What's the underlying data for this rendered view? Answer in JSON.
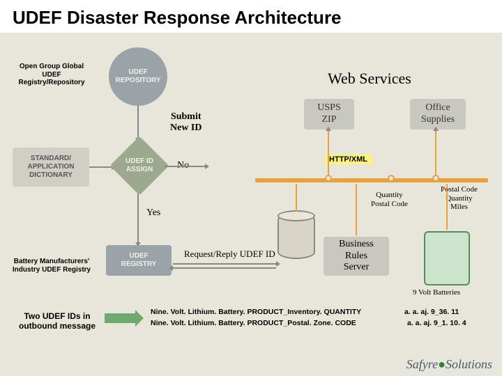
{
  "title": "UDEF Disaster Response Architecture",
  "colors": {
    "bg": "#e8e5da",
    "grey_fill": "#9aa4a8",
    "grey_dark": "#7f8a90",
    "text_light": "#f2efe6",
    "diamond": "#9ca98f",
    "bus": "#e9a23a",
    "green": "#6ea96e",
    "hl": "#fff27a"
  },
  "nodes": {
    "repo_circle": "UDEF\nREPOSITORY",
    "dict_rect": "STANDARD/\nAPPLICATION\nDICTIONARY",
    "assign_diamond": "UDEF ID\nASSIGN",
    "registry_rect": "UDEF\nREGISTRY",
    "rules_rect": "Business\nRules\nServer"
  },
  "labels": {
    "open_group": "Open Group Global\nUDEF\nRegistry/Repository",
    "submit": "Submit\nNew ID",
    "no": "No",
    "yes": "Yes",
    "web_services": "Web Services",
    "usps": "USPS\nZIP",
    "office": "Office\nSupplies",
    "http": "HTTP/XML",
    "qty_postal": "Quantity\nPostal Code",
    "postal_miles": "Postal Code\nQuantity\nMiles",
    "nine_volt": "9 Volt Batteries",
    "req_reply": "Request/Reply UDEF ID",
    "battery_mfr": "Battery Manufacturers'\nIndustry UDEF Registry",
    "two_ids": "Two UDEF IDs in\noutbound message"
  },
  "codes": {
    "line1_left": "Nine. Volt. Lithium. Battery. PRODUCT_Inventory. QUANTITY",
    "line1_right": "a. a. aj. 9_36. 11",
    "line2_left": "Nine. Volt. Lithium. Battery. PRODUCT_Postal. Zone. CODE",
    "line2_right": "a. a. aj. 9_1. 10. 4"
  },
  "logo": {
    "left": "Safyre",
    "right": "Solutions"
  }
}
